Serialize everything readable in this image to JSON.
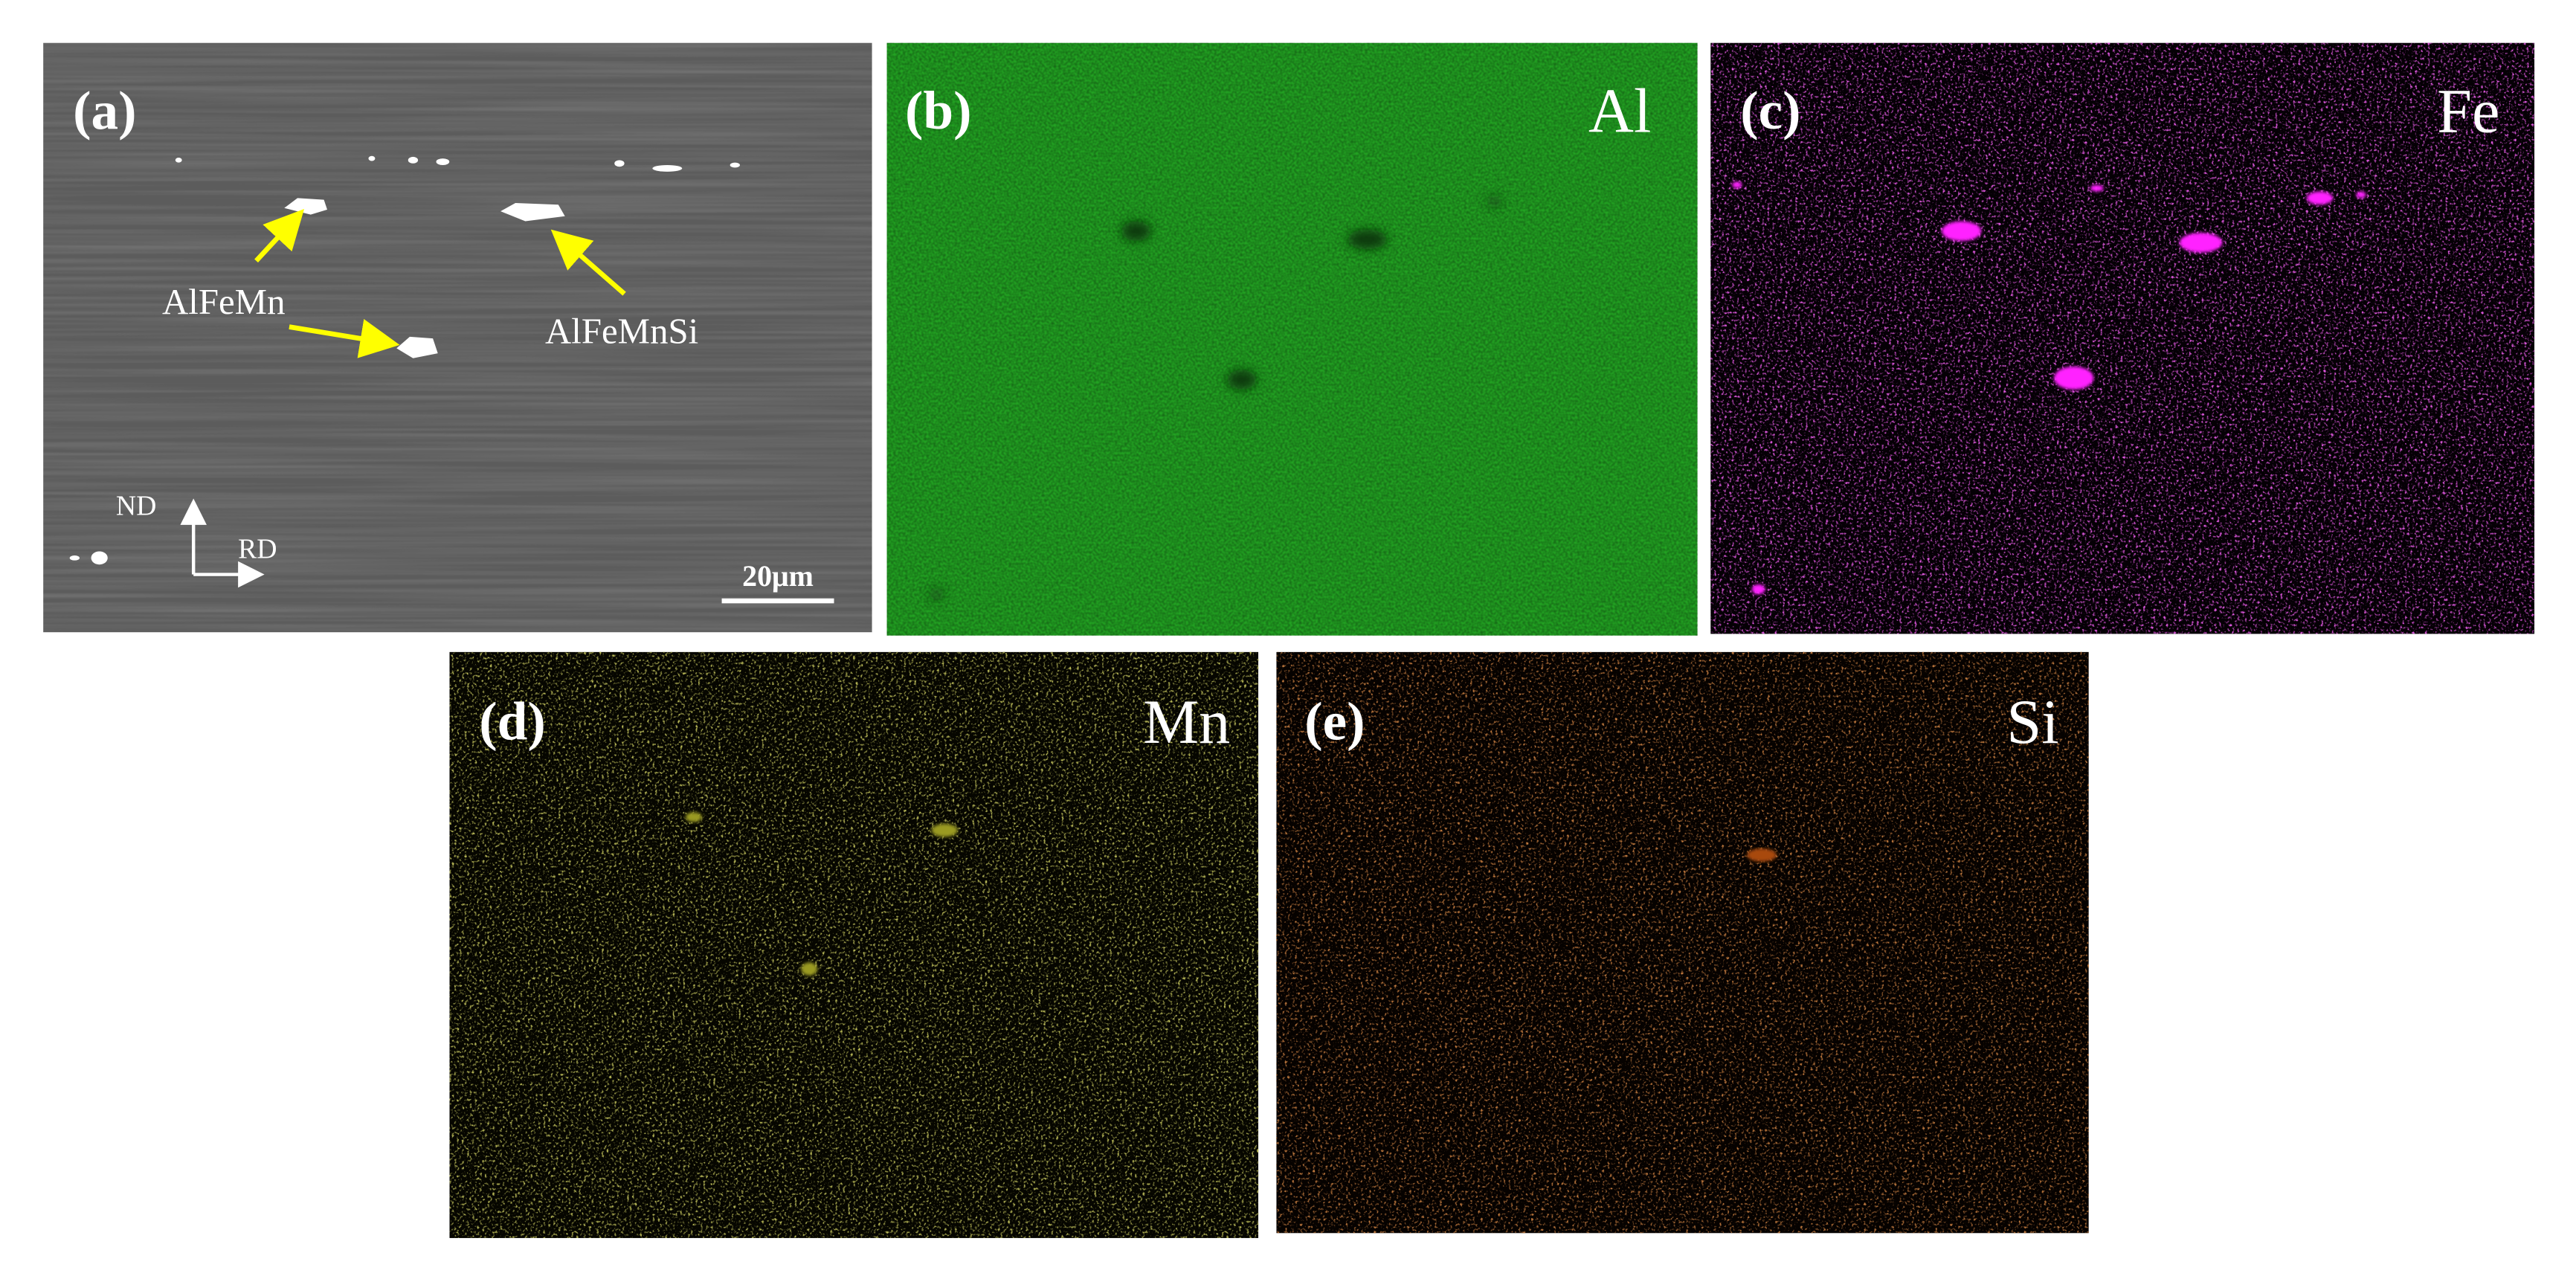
{
  "panels": [
    {
      "label": "(a)",
      "annotations": [
        "AlFeMn",
        "AlFeMnSi"
      ],
      "axes": [
        "ND",
        "RD"
      ],
      "scale_bar": "20μm"
    },
    {
      "label": "(b)",
      "element": "Al"
    },
    {
      "label": "(c)",
      "element": "Fe"
    },
    {
      "label": "(d)",
      "element": "Mn"
    },
    {
      "label": "(e)",
      "element": "Si"
    }
  ]
}
